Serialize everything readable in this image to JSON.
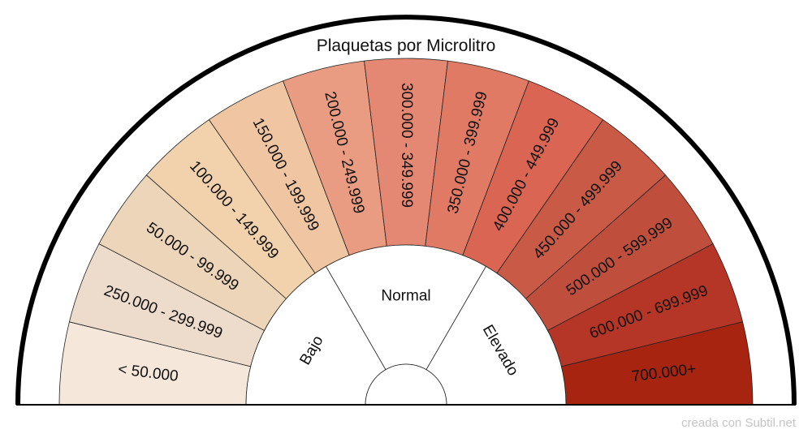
{
  "chart_data": {
    "type": "semicircle-gauge",
    "title": "Plaquetas por Microlitro",
    "credit": "creada con Subtil.net",
    "segments": [
      {
        "label": "< 50.000",
        "color": "#f5e8da"
      },
      {
        "label": "250.000 - 299.999",
        "color": "#eddccb"
      },
      {
        "label": "50.000 - 99.999",
        "color": "#ecd5b8"
      },
      {
        "label": "100.000 - 149.999",
        "color": "#f2d2ac"
      },
      {
        "label": "150.000 - 199.999",
        "color": "#f0c5a1"
      },
      {
        "label": "200.000 - 249.999",
        "color": "#e99c81"
      },
      {
        "label": "300.000 - 349.999",
        "color": "#e58873"
      },
      {
        "label": "350.000 - 399.999",
        "color": "#e07a64"
      },
      {
        "label": "400.000 - 449.999",
        "color": "#da6553"
      },
      {
        "label": "450.000 - 499.999",
        "color": "#c85a46"
      },
      {
        "label": "500.000 - 599.999",
        "color": "#bf4f3c"
      },
      {
        "label": "600.000 - 699.999",
        "color": "#b53627"
      },
      {
        "label": "700.000+",
        "color": "#a62410"
      }
    ],
    "groups": [
      {
        "label": "Bajo"
      },
      {
        "label": "Normal"
      },
      {
        "label": "Elevado"
      }
    ]
  }
}
